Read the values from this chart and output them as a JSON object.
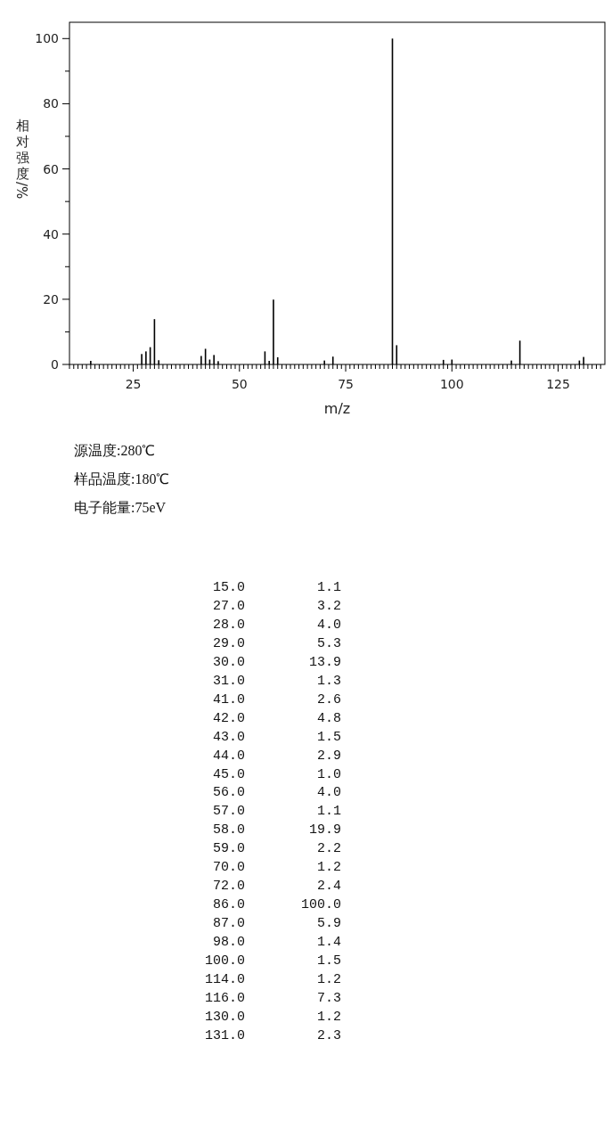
{
  "chart_data": [
    {
      "type": "bar",
      "xlabel": "m/z",
      "ylabel": "相对强度/%",
      "x": [
        15,
        27,
        28,
        29,
        30,
        31,
        41,
        42,
        43,
        44,
        45,
        56,
        57,
        58,
        59,
        70,
        72,
        86,
        87,
        98,
        100,
        114,
        116,
        130,
        131
      ],
      "values": [
        1.1,
        3.2,
        4.0,
        5.3,
        13.9,
        1.3,
        2.6,
        4.8,
        1.5,
        2.9,
        1.0,
        4.0,
        1.1,
        19.9,
        2.2,
        1.2,
        2.4,
        100.0,
        5.9,
        1.4,
        1.5,
        1.2,
        7.3,
        1.2,
        2.3
      ],
      "color": "#000000",
      "xlim": [
        10,
        136
      ],
      "xticks": [
        {
          "value": 10,
          "label": null
        },
        {
          "value": 11,
          "label": null
        },
        {
          "value": 12,
          "label": null
        },
        {
          "value": 13,
          "label": null
        },
        {
          "value": 14,
          "label": null
        },
        {
          "value": 15,
          "label": null
        },
        {
          "value": 16,
          "label": null
        },
        {
          "value": 17,
          "label": null
        },
        {
          "value": 18,
          "label": null
        },
        {
          "value": 19,
          "label": null
        },
        {
          "value": 20,
          "label": null
        },
        {
          "value": 21,
          "label": null
        },
        {
          "value": 22,
          "label": null
        },
        {
          "value": 23,
          "label": null
        },
        {
          "value": 24,
          "label": null
        },
        25,
        {
          "value": 26,
          "label": null
        },
        {
          "value": 27,
          "label": null
        },
        {
          "value": 28,
          "label": null
        },
        {
          "value": 29,
          "label": null
        },
        {
          "value": 30,
          "label": null
        },
        {
          "value": 31,
          "label": null
        },
        {
          "value": 32,
          "label": null
        },
        {
          "value": 33,
          "label": null
        },
        {
          "value": 34,
          "label": null
        },
        {
          "value": 35,
          "label": null
        },
        {
          "value": 36,
          "label": null
        },
        {
          "value": 37,
          "label": null
        },
        {
          "value": 38,
          "label": null
        },
        {
          "value": 39,
          "label": null
        },
        {
          "value": 40,
          "label": null
        },
        {
          "value": 41,
          "label": null
        },
        {
          "value": 42,
          "label": null
        },
        {
          "value": 43,
          "label": null
        },
        {
          "value": 44,
          "label": null
        },
        {
          "value": 45,
          "label": null
        },
        {
          "value": 46,
          "label": null
        },
        {
          "value": 47,
          "label": null
        },
        {
          "value": 48,
          "label": null
        },
        {
          "value": 49,
          "label": null
        },
        50,
        {
          "value": 51,
          "label": null
        },
        {
          "value": 52,
          "label": null
        },
        {
          "value": 53,
          "label": null
        },
        {
          "value": 54,
          "label": null
        },
        {
          "value": 55,
          "label": null
        },
        {
          "value": 56,
          "label": null
        },
        {
          "value": 57,
          "label": null
        },
        {
          "value": 58,
          "label": null
        },
        {
          "value": 59,
          "label": null
        },
        {
          "value": 60,
          "label": null
        },
        {
          "value": 61,
          "label": null
        },
        {
          "value": 62,
          "label": null
        },
        {
          "value": 63,
          "label": null
        },
        {
          "value": 64,
          "label": null
        },
        {
          "value": 65,
          "label": null
        },
        {
          "value": 66,
          "label": null
        },
        {
          "value": 67,
          "label": null
        },
        {
          "value": 68,
          "label": null
        },
        {
          "value": 69,
          "label": null
        },
        {
          "value": 70,
          "label": null
        },
        {
          "value": 71,
          "label": null
        },
        {
          "value": 72,
          "label": null
        },
        {
          "value": 73,
          "label": null
        },
        {
          "value": 74,
          "label": null
        },
        75,
        {
          "value": 76,
          "label": null
        },
        {
          "value": 77,
          "label": null
        },
        {
          "value": 78,
          "label": null
        },
        {
          "value": 79,
          "label": null
        },
        {
          "value": 80,
          "label": null
        },
        {
          "value": 81,
          "label": null
        },
        {
          "value": 82,
          "label": null
        },
        {
          "value": 83,
          "label": null
        },
        {
          "value": 84,
          "label": null
        },
        {
          "value": 85,
          "label": null
        },
        {
          "value": 86,
          "label": null
        },
        {
          "value": 87,
          "label": null
        },
        {
          "value": 88,
          "label": null
        },
        {
          "value": 89,
          "label": null
        },
        {
          "value": 90,
          "label": null
        },
        {
          "value": 91,
          "label": null
        },
        {
          "value": 92,
          "label": null
        },
        {
          "value": 93,
          "label": null
        },
        {
          "value": 94,
          "label": null
        },
        {
          "value": 95,
          "label": null
        },
        {
          "value": 96,
          "label": null
        },
        {
          "value": 97,
          "label": null
        },
        {
          "value": 98,
          "label": null
        },
        {
          "value": 99,
          "label": null
        },
        100,
        {
          "value": 101,
          "label": null
        },
        {
          "value": 102,
          "label": null
        },
        {
          "value": 103,
          "label": null
        },
        {
          "value": 104,
          "label": null
        },
        {
          "value": 105,
          "label": null
        },
        {
          "value": 106,
          "label": null
        },
        {
          "value": 107,
          "label": null
        },
        {
          "value": 108,
          "label": null
        },
        {
          "value": 109,
          "label": null
        },
        {
          "value": 110,
          "label": null
        },
        {
          "value": 111,
          "label": null
        },
        {
          "value": 112,
          "label": null
        },
        {
          "value": 113,
          "label": null
        },
        {
          "value": 114,
          "label": null
        },
        {
          "value": 115,
          "label": null
        },
        {
          "value": 116,
          "label": null
        },
        {
          "value": 117,
          "label": null
        },
        {
          "value": 118,
          "label": null
        },
        {
          "value": 119,
          "label": null
        },
        {
          "value": 120,
          "label": null
        },
        {
          "value": 121,
          "label": null
        },
        {
          "value": 122,
          "label": null
        },
        {
          "value": 123,
          "label": null
        },
        {
          "value": 124,
          "label": null
        },
        125,
        {
          "value": 126,
          "label": null
        },
        {
          "value": 127,
          "label": null
        },
        {
          "value": 128,
          "label": null
        },
        {
          "value": 129,
          "label": null
        },
        {
          "value": 130,
          "label": null
        },
        {
          "value": 131,
          "label": null
        },
        {
          "value": 132,
          "label": null
        },
        {
          "value": 133,
          "label": null
        },
        {
          "value": 134,
          "label": null
        },
        {
          "value": 135,
          "label": null
        }
      ],
      "ylim": [
        0,
        105
      ],
      "yticks": [
        0,
        {
          "value": 10,
          "label": null
        },
        20,
        {
          "value": 30,
          "label": null
        },
        40,
        {
          "value": 50,
          "label": null
        },
        60,
        {
          "value": 70,
          "label": null
        },
        80,
        {
          "value": 90,
          "label": null
        },
        100
      ],
      "annotations": [
        "源温度:280℃",
        "样品温度:180℃",
        "电子能量:75eV"
      ]
    },
    {
      "type": "other",
      "annotations": [
        "15.0",
        "1.1",
        "27.0",
        "3.2",
        "28.0",
        "4.0",
        "29.0",
        "5.3",
        "30.0",
        "13.9",
        "31.0",
        "1.3",
        "41.0",
        "2.6",
        "42.0",
        "4.8",
        "43.0",
        "1.5",
        "44.0",
        "2.9",
        "45.0",
        "1.0",
        "56.0",
        "4.0",
        "57.0",
        "1.1",
        "58.0",
        "19.9",
        "59.0",
        "2.2",
        "70.0",
        "1.2",
        "72.0",
        "2.4",
        "86.0",
        "100.0",
        "87.0",
        "5.9",
        "98.0",
        "1.4",
        "100.0",
        "1.5",
        "114.0",
        "1.2",
        "116.0",
        "7.3",
        "130.0",
        "1.2",
        "131.0",
        "2.3"
      ]
    }
  ]
}
